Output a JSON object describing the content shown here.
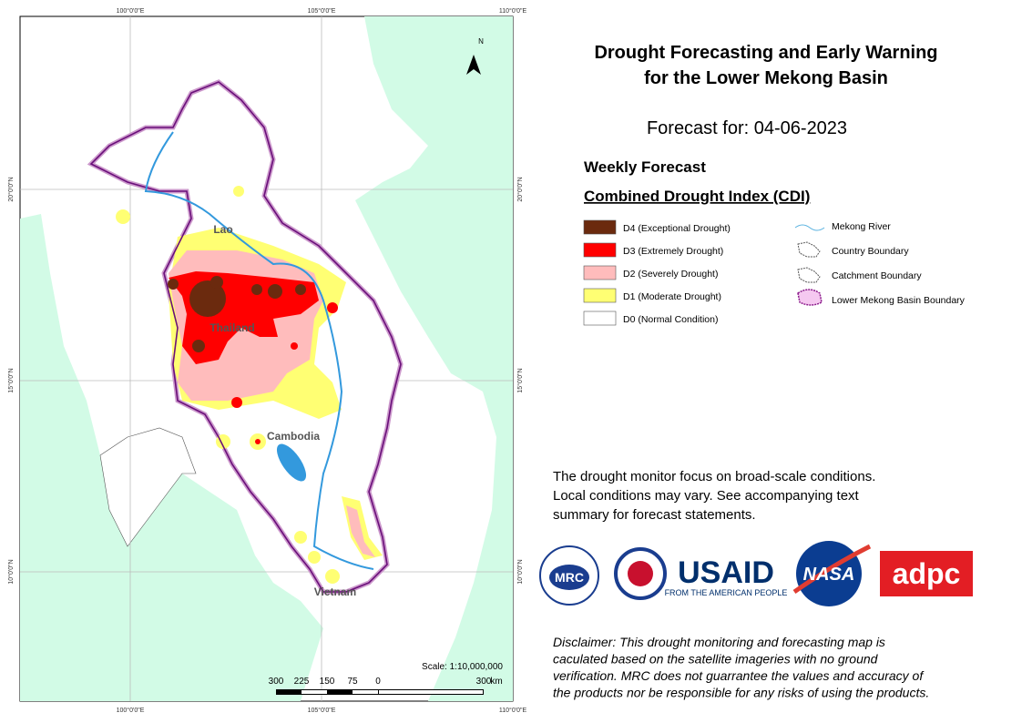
{
  "map": {
    "graticule": {
      "lon": [
        "100°0'0\"E",
        "105°0'0\"E",
        "110°0'0\"E"
      ],
      "lat": [
        "20°0'0\"N",
        "15°0'0\"N",
        "10°0'0\"N"
      ]
    },
    "north": "N",
    "places": [
      "Lao",
      "Thailand",
      "Cambodia",
      "Vietnam"
    ],
    "scale": {
      "label": "Scale: 1:10,000,000",
      "ticks": [
        "300",
        "225",
        "150",
        "75",
        "0",
        "300"
      ],
      "unit": "km"
    }
  },
  "panel": {
    "title": [
      "Drought Forecasting and Early Warning",
      "for the Lower Mekong Basin"
    ],
    "forecast": "Forecast for: 04-06-2023",
    "subtitle": "Weekly Forecast",
    "index": "Combined Drought Index (CDI)",
    "classes": [
      {
        "label": "D4 (Exceptional Drought)",
        "color": "#6b2a0e"
      },
      {
        "label": "D3 (Extremely Drought)",
        "color": "#ff0000"
      },
      {
        "label": "D2 (Severely Drought)",
        "color": "#ffbcbc"
      },
      {
        "label": "D1 (Moderate Drought)",
        "color": "#ffff73"
      },
      {
        "label": "D0 (Normal Condition)",
        "color": "#ffffff"
      }
    ],
    "lines": [
      "Mekong River",
      "Country Boundary",
      "Catchment Boundary",
      "Lower Mekong Basin Boundary"
    ],
    "note": [
      "The drought monitor focus on broad-scale conditions.",
      "Local conditions may vary. See accompanying text",
      "summary for forecast statements."
    ],
    "logos": {
      "mrc": "MRC",
      "usaid": "USAID",
      "usaid_tag": "FROM THE AMERICAN PEOPLE",
      "nasa": "NASA",
      "adpc": "adpc"
    },
    "disclaimer": [
      "Disclaimer: This drought monitoring and forecasting map is",
      "caculated based on the satellite imageries with no ground",
      "verification. MRC does not guarrantee the values and accuracy of",
      "the products nor be responsible for any risks of using the products."
    ]
  }
}
